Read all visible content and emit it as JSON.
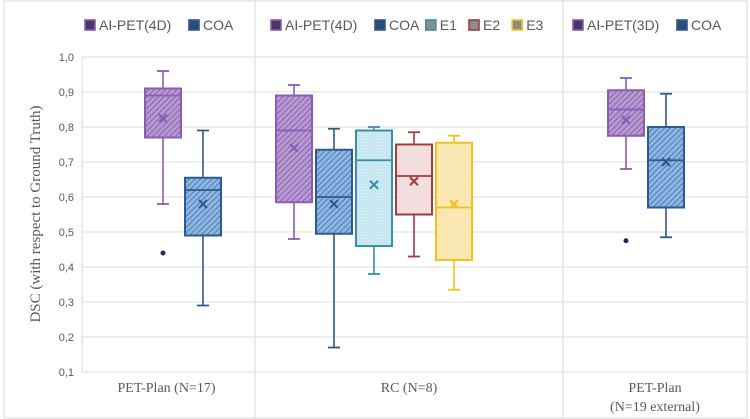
{
  "chart_data": {
    "type": "boxplot",
    "title": "",
    "ylabel": "DSC (with respect to Ground Truth)",
    "ylim": [
      0.1,
      1.0
    ],
    "yticks": [
      "0,1",
      "0,2",
      "0,3",
      "0,4",
      "0,5",
      "0,6",
      "0,7",
      "0,8",
      "0,9",
      "1,0"
    ],
    "grid": true,
    "legend_position": "top of each panel",
    "panels": [
      {
        "xlabel": [
          "PET-Plan (N=17)"
        ],
        "legend": [
          "AI-PET(4D)",
          "COA"
        ],
        "series": [
          {
            "name": "AI-PET(4D)",
            "color": "#8a5cb5",
            "fill": "#b89ad3",
            "pattern": "hatch",
            "whisker_low": 0.58,
            "q1": 0.77,
            "median": 0.89,
            "q3": 0.91,
            "whisker_high": 0.96,
            "mean": 0.825,
            "outliers": [
              0.44
            ]
          },
          {
            "name": "COA",
            "color": "#2e5a8c",
            "fill": "#7ba6d8",
            "pattern": "hatch",
            "whisker_low": 0.29,
            "q1": 0.49,
            "median": 0.62,
            "q3": 0.655,
            "whisker_high": 0.79,
            "mean": 0.58,
            "outliers": []
          }
        ]
      },
      {
        "xlabel": [
          "RC (N=8)"
        ],
        "legend": [
          "AI-PET(4D)",
          "COA",
          "E1",
          "E2",
          "E3"
        ],
        "series": [
          {
            "name": "AI-PET(4D)",
            "color": "#8a5cb5",
            "fill": "#b89ad3",
            "pattern": "hatch",
            "whisker_low": 0.48,
            "q1": 0.585,
            "median": 0.79,
            "q3": 0.89,
            "whisker_high": 0.92,
            "mean": 0.74,
            "outliers": []
          },
          {
            "name": "COA",
            "color": "#2e5a8c",
            "fill": "#7ba6d8",
            "pattern": "hatch",
            "whisker_low": 0.17,
            "q1": 0.495,
            "median": 0.6,
            "q3": 0.735,
            "whisker_high": 0.795,
            "mean": 0.58,
            "outliers": []
          },
          {
            "name": "E1",
            "color": "#3a8ea6",
            "fill": "#c6e6f0",
            "pattern": "dots",
            "whisker_low": 0.38,
            "q1": 0.46,
            "median": 0.705,
            "q3": 0.79,
            "whisker_high": 0.8,
            "mean": 0.635,
            "outliers": []
          },
          {
            "name": "E2",
            "color": "#a23a3e",
            "fill": "#f2dcdc",
            "pattern": "dots",
            "whisker_low": 0.43,
            "q1": 0.55,
            "median": 0.66,
            "q3": 0.75,
            "whisker_high": 0.785,
            "mean": 0.645,
            "outliers": []
          },
          {
            "name": "E3",
            "color": "#f2c11a",
            "fill": "#fbe6b0",
            "pattern": "dots",
            "whisker_low": 0.335,
            "q1": 0.42,
            "median": 0.57,
            "q3": 0.755,
            "whisker_high": 0.775,
            "mean": 0.58,
            "outliers": []
          }
        ]
      },
      {
        "xlabel": [
          "PET-Plan",
          "(N=19 external)"
        ],
        "legend": [
          "AI-PET(3D)",
          "COA"
        ],
        "series": [
          {
            "name": "AI-PET(3D)",
            "color": "#8a5cb5",
            "fill": "#b89ad3",
            "pattern": "hatch",
            "whisker_low": 0.68,
            "q1": 0.775,
            "median": 0.85,
            "q3": 0.905,
            "whisker_high": 0.94,
            "mean": 0.82,
            "outliers": [
              0.475
            ]
          },
          {
            "name": "COA",
            "color": "#2e5a8c",
            "fill": "#7ba6d8",
            "pattern": "hatch",
            "whisker_low": 0.485,
            "q1": 0.57,
            "median": 0.705,
            "q3": 0.8,
            "whisker_high": 0.895,
            "mean": 0.7,
            "outliers": []
          }
        ]
      }
    ]
  }
}
